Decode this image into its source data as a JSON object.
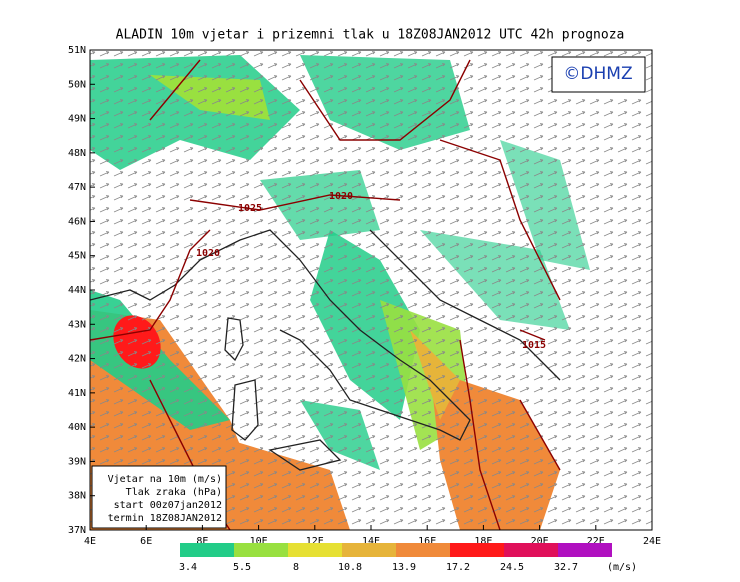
{
  "title": "ALADIN  10m  vjetar  i  prizemni  tlak  u  18Z08JAN2012  UTC  42h  prognoza",
  "logo": "©DHMZ",
  "lat_labels": [
    "51N",
    "50N",
    "49N",
    "48N",
    "47N",
    "46N",
    "45N",
    "44N",
    "43N",
    "42N",
    "41N",
    "40N",
    "39N",
    "38N",
    "37N"
  ],
  "lon_labels": [
    "4E",
    "6E",
    "8E",
    "10E",
    "12E",
    "14E",
    "16E",
    "18E",
    "20E",
    "22E",
    "24E"
  ],
  "isobar_labels": [
    "1025",
    "1020",
    "1020",
    "1015"
  ],
  "legend_lines": [
    "Vjetar na 10m (m/s)",
    "Tlak zraka (hPa)",
    "start 00z07jan2012",
    "termin 18Z08JAN2012"
  ],
  "colorbar": {
    "labels": [
      "3.4",
      "5.5",
      "8",
      "10.8",
      "13.9",
      "17.2",
      "24.5",
      "32.7"
    ],
    "unit": "(m/s)",
    "colors": [
      "#22cc88",
      "#99e040",
      "#e6e033",
      "#e6b43a",
      "#f08a3a",
      "#ff1a1a",
      "#e0105a",
      "#b010c0"
    ]
  }
}
